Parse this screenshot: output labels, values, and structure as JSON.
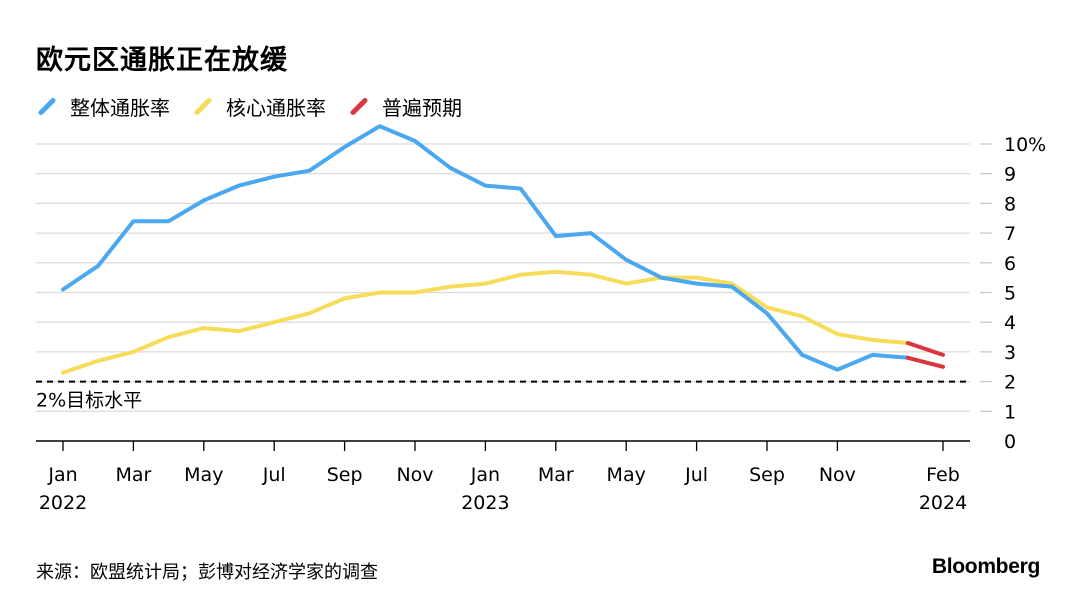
{
  "title": "欧元区通胀正在放缓",
  "legend": [
    {
      "label": "整体通胀率",
      "color": "#4aa8f0"
    },
    {
      "label": "核心通胀率",
      "color": "#f7dc5c"
    },
    {
      "label": "普遍预期",
      "color": "#d9363e"
    }
  ],
  "source": "来源：欧盟统计局；彭博对经济学家的调查",
  "brand": "Bloomberg",
  "chart_data": {
    "type": "line",
    "x": [
      "2022-01",
      "2022-02",
      "2022-03",
      "2022-04",
      "2022-05",
      "2022-06",
      "2022-07",
      "2022-08",
      "2022-09",
      "2022-10",
      "2022-11",
      "2022-12",
      "2023-01",
      "2023-02",
      "2023-03",
      "2023-04",
      "2023-05",
      "2023-06",
      "2023-07",
      "2023-08",
      "2023-09",
      "2023-10",
      "2023-11",
      "2023-12",
      "2024-01",
      "2024-02"
    ],
    "series": [
      {
        "name": "整体通胀率",
        "color": "#4aa8f0",
        "values": [
          5.1,
          5.9,
          7.4,
          7.4,
          8.1,
          8.6,
          8.9,
          9.1,
          9.9,
          10.6,
          10.1,
          9.2,
          8.6,
          8.5,
          6.9,
          7.0,
          6.1,
          5.5,
          5.3,
          5.2,
          4.3,
          2.9,
          2.4,
          2.9,
          2.8,
          null
        ]
      },
      {
        "name": "核心通胀率",
        "color": "#f7dc5c",
        "values": [
          2.3,
          2.7,
          3.0,
          3.5,
          3.8,
          3.7,
          4.0,
          4.3,
          4.8,
          5.0,
          5.0,
          5.2,
          5.3,
          5.6,
          5.7,
          5.6,
          5.3,
          5.5,
          5.5,
          5.3,
          4.5,
          4.2,
          3.6,
          3.4,
          3.3,
          null
        ]
      },
      {
        "name": "普遍预期",
        "color": "#d9363e",
        "segments": [
          {
            "x": [
              "2024-01",
              "2024-02"
            ],
            "values": [
              2.8,
              2.5
            ]
          },
          {
            "x": [
              "2024-01",
              "2024-02"
            ],
            "values": [
              3.3,
              2.9
            ]
          }
        ]
      }
    ],
    "ylim": [
      0,
      10
    ],
    "yticks": [
      "0",
      "1",
      "2",
      "3",
      "4",
      "5",
      "6",
      "7",
      "8",
      "9",
      "10%"
    ],
    "xticks": [
      {
        "x": "2022-01",
        "label": "Jan",
        "year": "2022"
      },
      {
        "x": "2022-03",
        "label": "Mar"
      },
      {
        "x": "2022-05",
        "label": "May"
      },
      {
        "x": "2022-07",
        "label": "Jul"
      },
      {
        "x": "2022-09",
        "label": "Sep"
      },
      {
        "x": "2022-11",
        "label": "Nov"
      },
      {
        "x": "2023-01",
        "label": "Jan",
        "year": "2023"
      },
      {
        "x": "2023-03",
        "label": "Mar"
      },
      {
        "x": "2023-05",
        "label": "May"
      },
      {
        "x": "2023-07",
        "label": "Jul"
      },
      {
        "x": "2023-09",
        "label": "Sep"
      },
      {
        "x": "2023-11",
        "label": "Nov"
      },
      {
        "x": "2024-02",
        "label": "Feb",
        "year": "2024"
      }
    ],
    "reference_line": {
      "value": 2,
      "label": "2%目标水平",
      "style": "dashed"
    },
    "grid": true,
    "legend_position": "top-left"
  }
}
